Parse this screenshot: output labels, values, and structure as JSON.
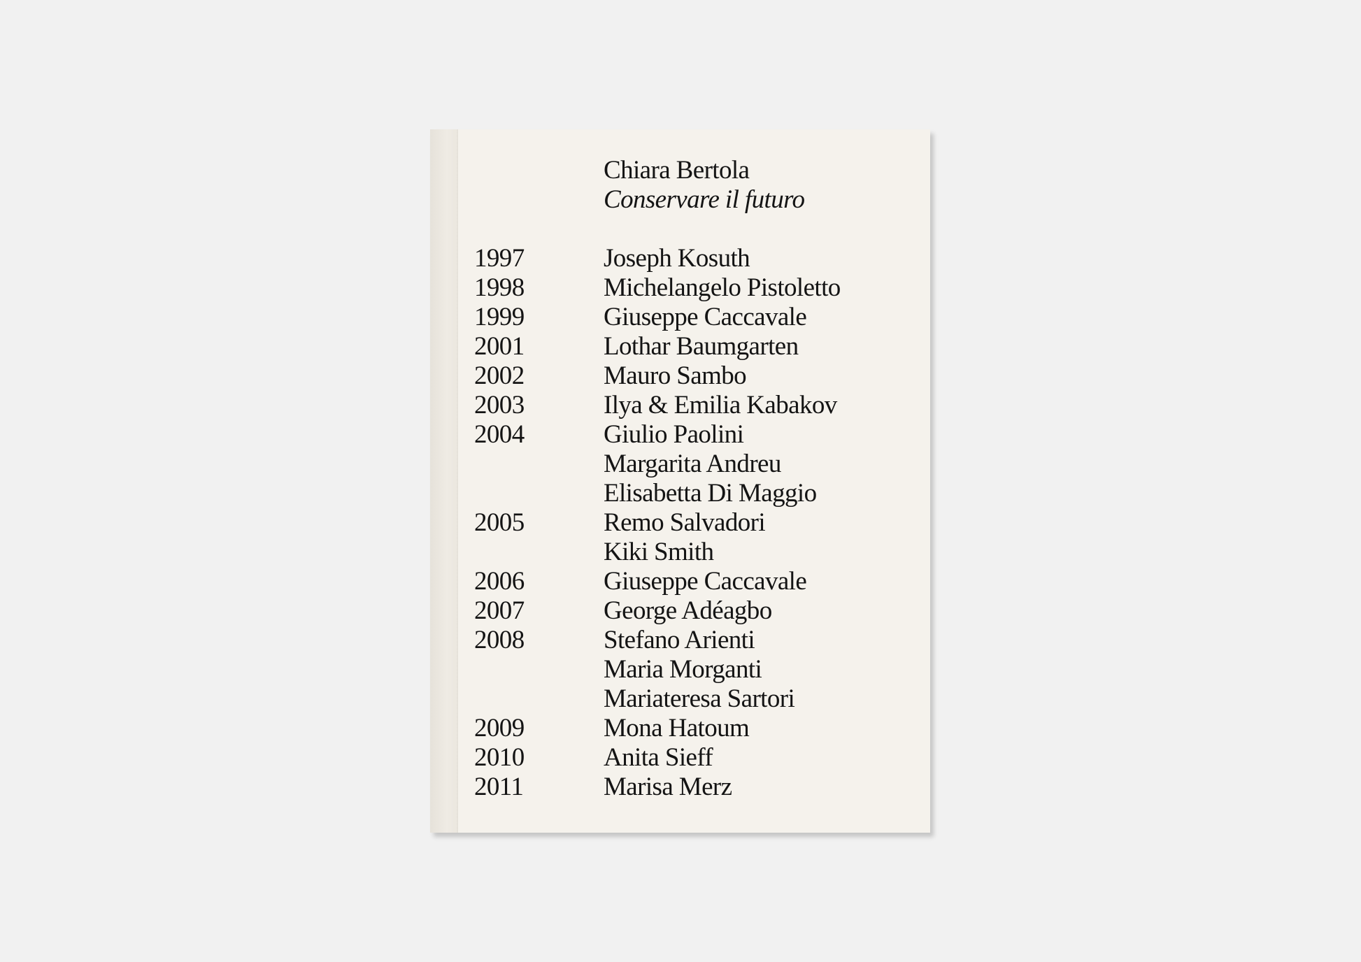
{
  "book": {
    "author": "Chiara Bertola",
    "title": "Conservare il futuro",
    "entries": [
      {
        "year": "1997",
        "name": "Joseph Kosuth"
      },
      {
        "year": "1998",
        "name": "Michelangelo Pistoletto"
      },
      {
        "year": "1999",
        "name": "Giuseppe Caccavale"
      },
      {
        "year": "2001",
        "name": "Lothar Baumgarten"
      },
      {
        "year": "2002",
        "name": "Mauro Sambo"
      },
      {
        "year": "2003",
        "name": "Ilya & Emilia Kabakov"
      },
      {
        "year": "2004",
        "name": "Giulio Paolini"
      },
      {
        "year": "",
        "name": "Margarita Andreu"
      },
      {
        "year": "",
        "name": "Elisabetta Di Maggio"
      },
      {
        "year": "2005",
        "name": "Remo Salvadori"
      },
      {
        "year": "",
        "name": "Kiki Smith"
      },
      {
        "year": "2006",
        "name": "Giuseppe Caccavale"
      },
      {
        "year": "2007",
        "name": "George Adéagbo"
      },
      {
        "year": "2008",
        "name": "Stefano Arienti"
      },
      {
        "year": "",
        "name": "Maria Morganti"
      },
      {
        "year": "",
        "name": "Mariateresa Sartori"
      },
      {
        "year": "2009",
        "name": "Mona Hatoum"
      },
      {
        "year": "2010",
        "name": "Anita Sieff"
      },
      {
        "year": "2011",
        "name": "Marisa Merz"
      }
    ]
  },
  "colors": {
    "background": "#f1f1f1",
    "cover": "#f5f2ec",
    "text": "#141414"
  }
}
